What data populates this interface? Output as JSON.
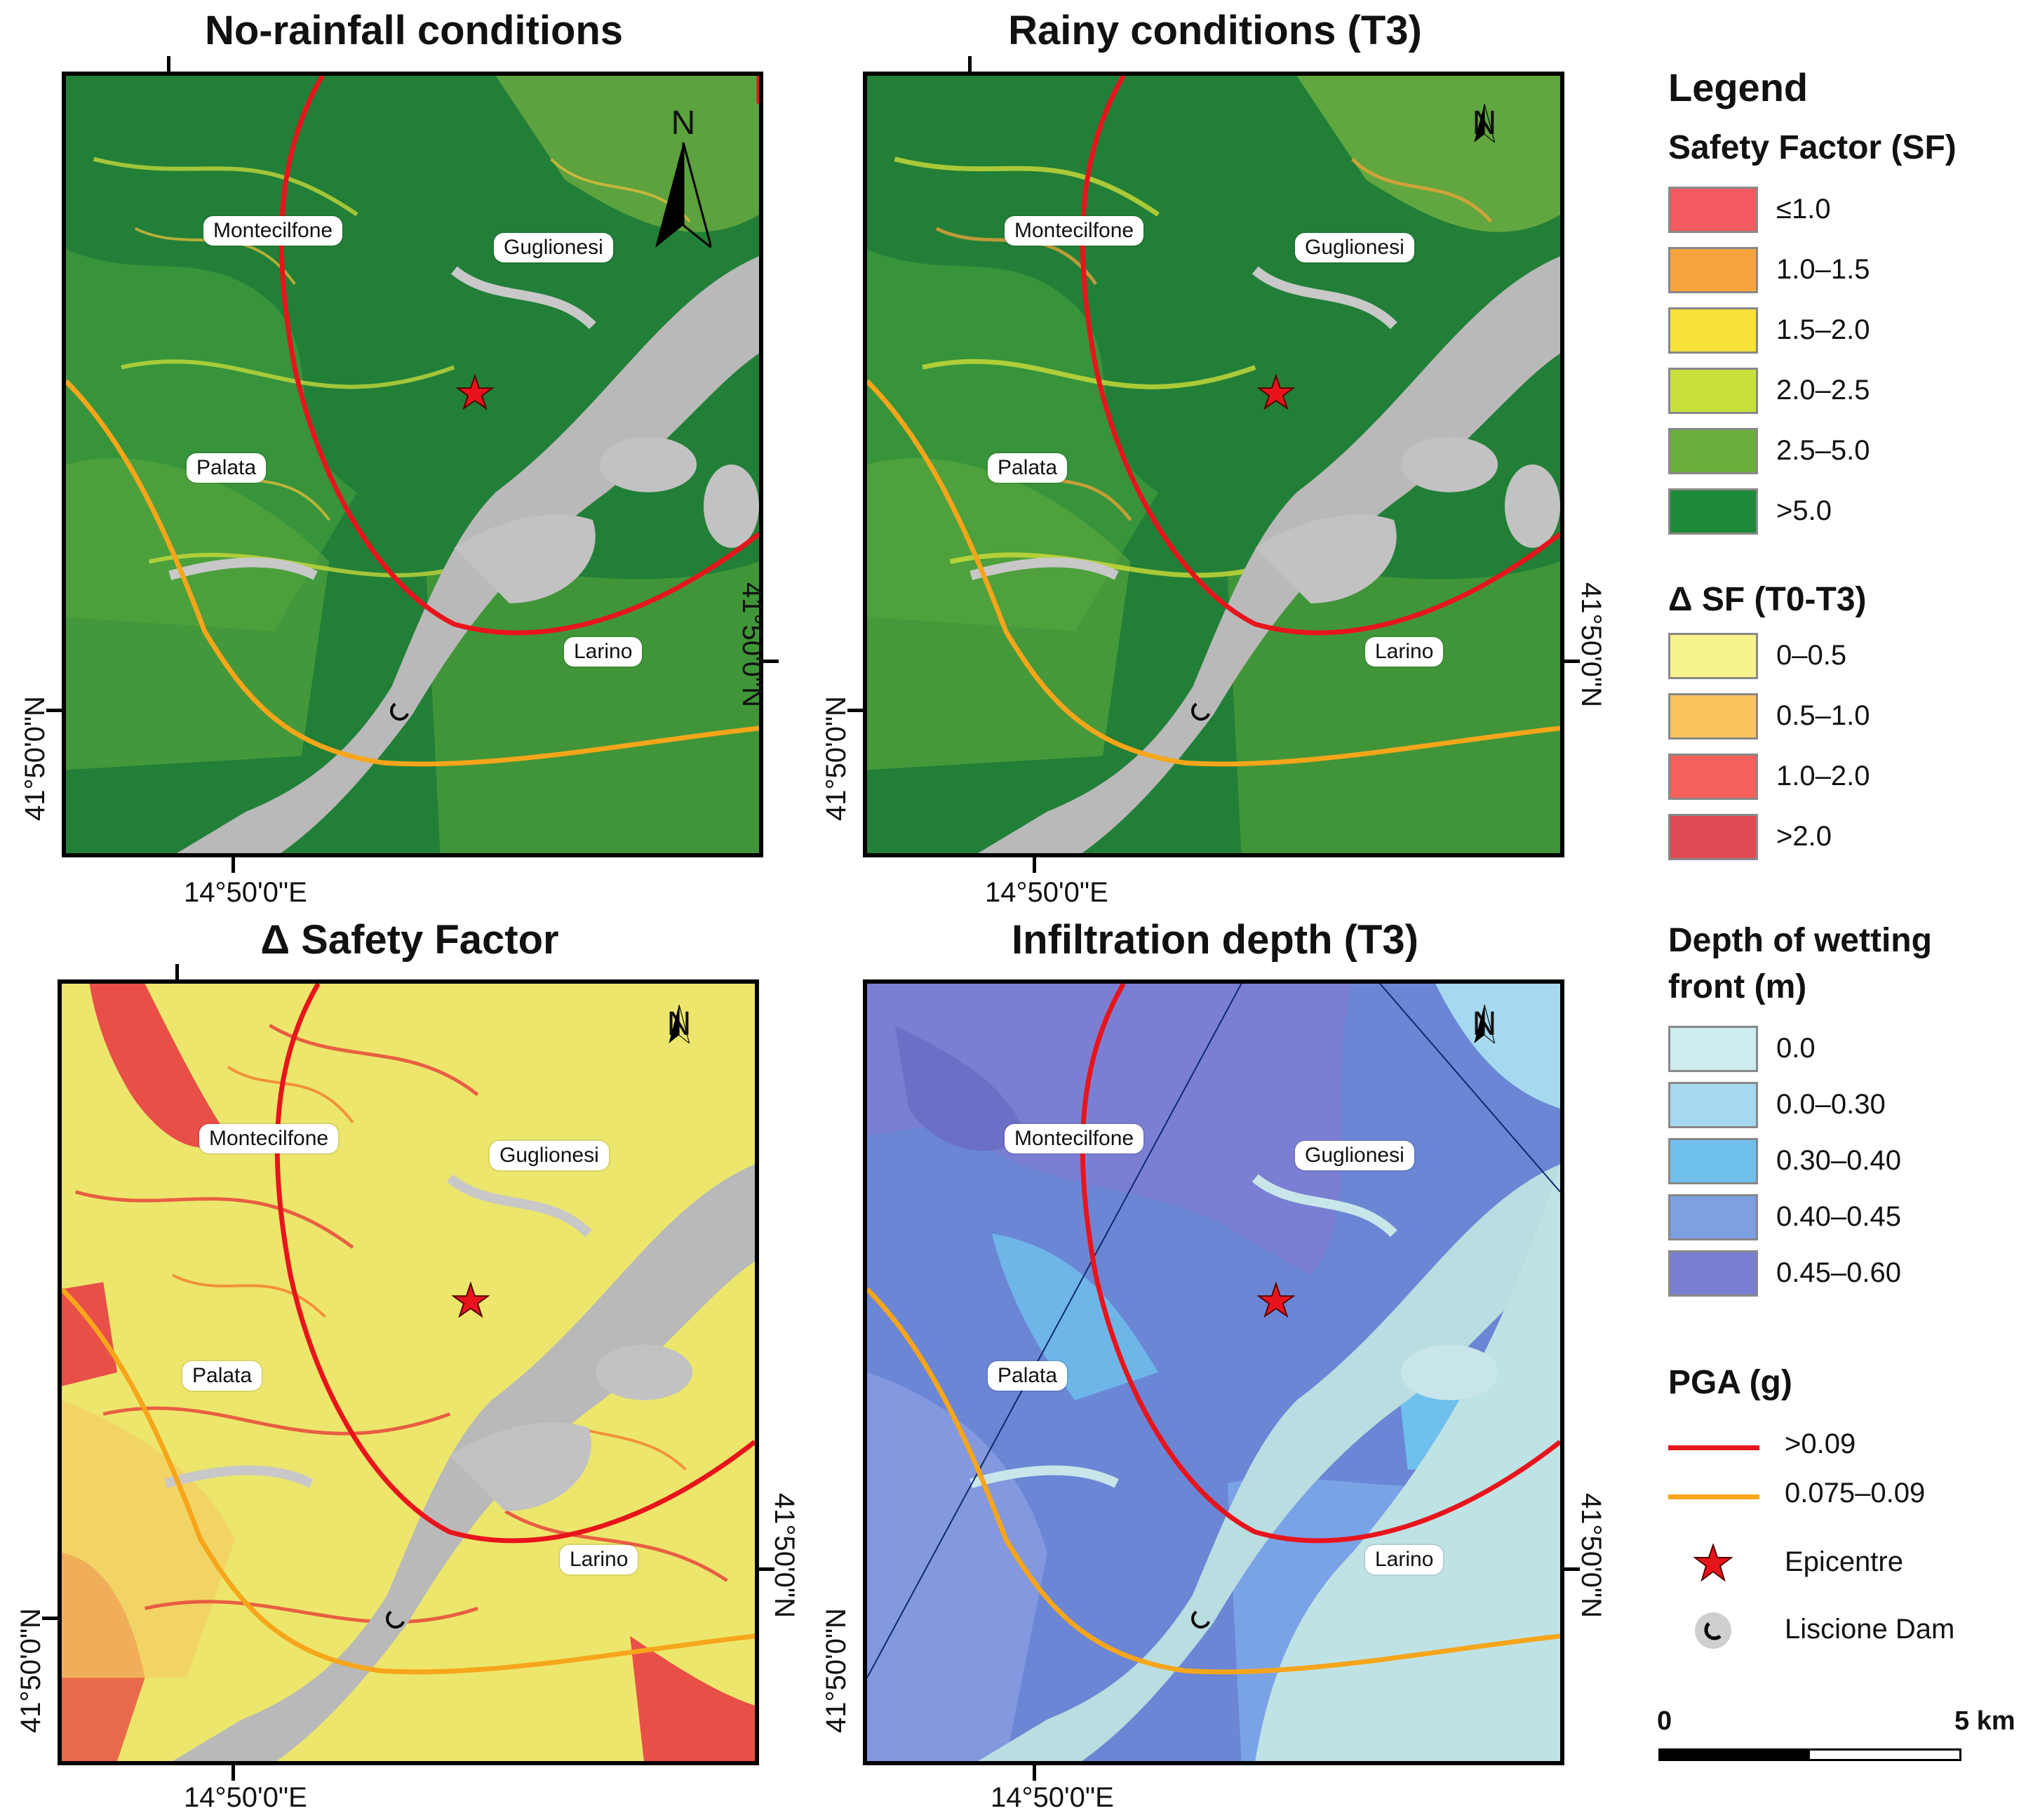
{
  "panels": [
    {
      "id": "p1",
      "title": "No-rainfall conditions",
      "coord_e": "14°50'0\"E",
      "coord_n_left": "41°50'0\"N",
      "coord_n_right": "41°50'0\"N"
    },
    {
      "id": "p2",
      "title": "Rainy conditions (T3)",
      "coord_e": "14°50'0\"E",
      "coord_n_left": "41°50'0\"N",
      "coord_n_right": "41°50'0\"N"
    },
    {
      "id": "p3",
      "title": "Δ Safety Factor",
      "coord_e": "14°50'0\"E",
      "coord_n_left": "41°50'0\"N",
      "coord_n_right": "41°50'0\"N"
    },
    {
      "id": "p4",
      "title": "Infiltration depth (T3)",
      "coord_e": "14°50'0\"E",
      "coord_n_left": "41°50'0\"N",
      "coord_n_right": "41°50'0\"N"
    }
  ],
  "towns": {
    "montecilfone": "Montecilfone",
    "guglionesi": "Guglionesi",
    "palata": "Palata",
    "larino": "Larino"
  },
  "north_label": "N",
  "legend": {
    "title": "Legend",
    "sf_title": "Safety Factor (SF)",
    "sf_classes": [
      {
        "label": "≤1.0",
        "color": "#f25a5f"
      },
      {
        "label": "1.0–1.5",
        "color": "#f7a33c"
      },
      {
        "label": "1.5–2.0",
        "color": "#f7e13a"
      },
      {
        "label": "2.0–2.5",
        "color": "#c9e03a"
      },
      {
        "label": "2.5–5.0",
        "color": "#6aaf3c"
      },
      {
        "label": ">5.0",
        "color": "#1d8a3a"
      }
    ],
    "dsf_title": "Δ SF (T0-T3)",
    "dsf_classes": [
      {
        "label": "0–0.5",
        "color": "#f6f38c"
      },
      {
        "label": "0.5–1.0",
        "color": "#fbc45e"
      },
      {
        "label": "1.0–2.0",
        "color": "#f5605c"
      },
      {
        "label": ">2.0",
        "color": "#e04a52"
      }
    ],
    "depth_title_1": "Depth of wetting",
    "depth_title_2": "front (m)",
    "depth_classes": [
      {
        "label": "0.0",
        "color": "#cdecef"
      },
      {
        "label": "0.0–0.30",
        "color": "#a6d8ef"
      },
      {
        "label": "0.30–0.40",
        "color": "#6fc0ec"
      },
      {
        "label": "0.40–0.45",
        "color": "#7e9fe2"
      },
      {
        "label": "0.45–0.60",
        "color": "#7b7fd3"
      }
    ],
    "pga_title": "PGA (g)",
    "pga_classes": [
      {
        "label": ">0.09",
        "color": "#e8141c"
      },
      {
        "label": "0.075–0.09",
        "color": "#f7a51a"
      }
    ],
    "epicentre_label": "Epicentre",
    "dam_label": "Liscione Dam",
    "scale_start": "0",
    "scale_end": "5 km"
  }
}
